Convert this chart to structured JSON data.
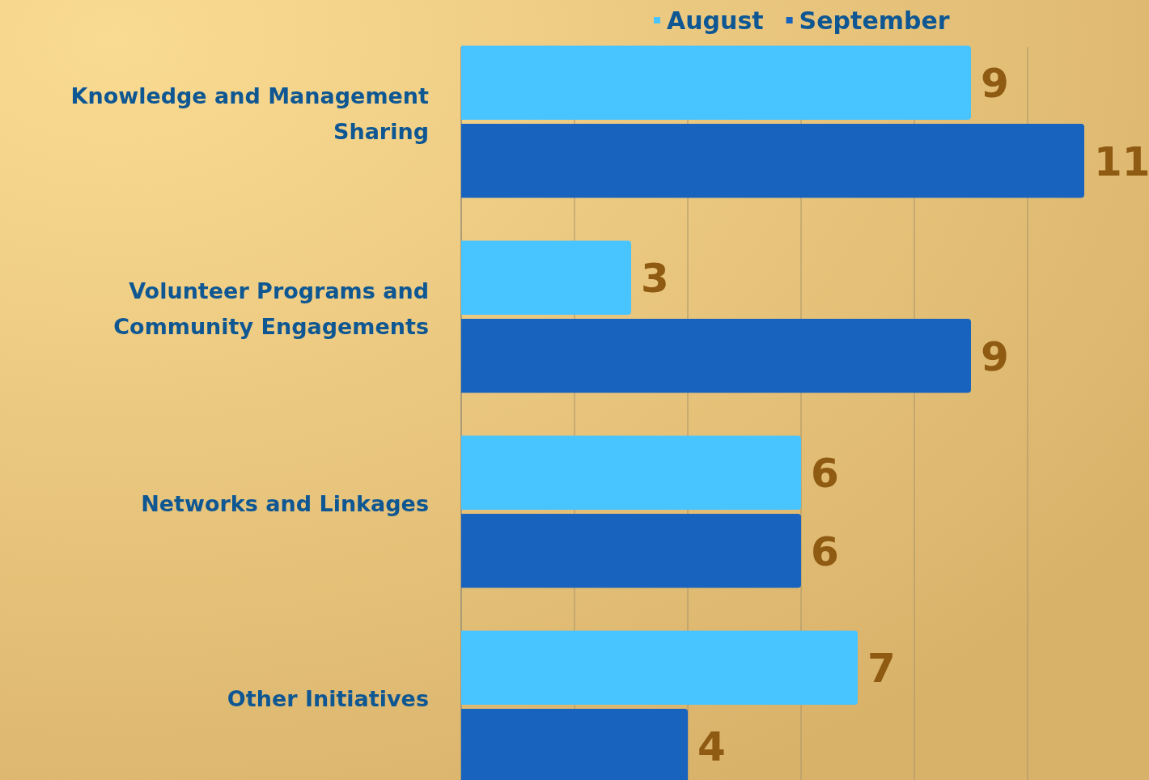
{
  "chart_data": {
    "type": "bar",
    "orientation": "horizontal",
    "categories": [
      "Knowledge and Management Sharing",
      "Volunteer Programs and Community Engagements",
      "Networks and Linkages",
      "Other Initiatives"
    ],
    "series": [
      {
        "name": "August",
        "color": "#48c4fe",
        "values": [
          9,
          3,
          6,
          7
        ]
      },
      {
        "name": "September",
        "color": "#1763be",
        "values": [
          11,
          9,
          6,
          4
        ]
      }
    ],
    "xlim": [
      0,
      11
    ],
    "xticks": [
      {
        "value": 0,
        "label": null
      },
      {
        "value": 2,
        "label": null
      },
      {
        "value": 4,
        "label": null
      },
      {
        "value": 6,
        "label": null
      },
      {
        "value": 8,
        "label": null
      },
      {
        "value": 10,
        "label": null
      }
    ],
    "tick_labels": "y",
    "grid": "x",
    "legend": "top",
    "data_labels": true
  }
}
